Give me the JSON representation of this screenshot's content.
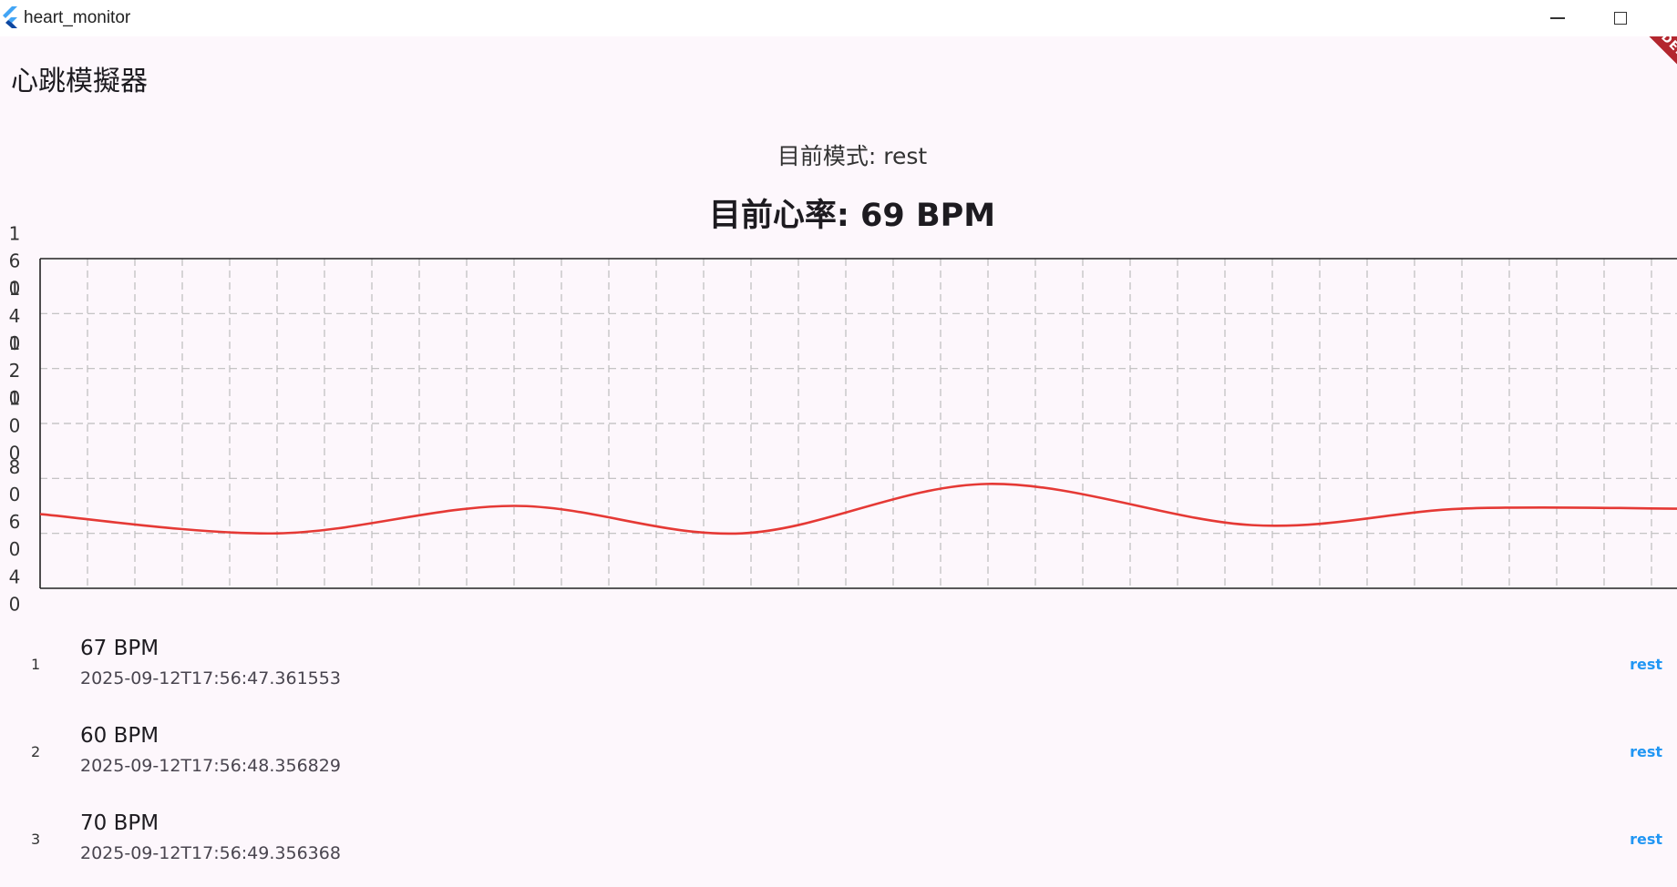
{
  "window": {
    "title": "heart_monitor",
    "minimize_icon": "minimize-icon",
    "maximize_icon": "maximize-icon",
    "debug_banner": "DEBUG"
  },
  "app": {
    "title": "心跳模擬器",
    "mode_label": "目前模式: rest",
    "bpm_label": "目前心率: 69 BPM"
  },
  "chart_data": {
    "type": "line",
    "ylim": [
      40,
      160
    ],
    "y_ticks": [
      40,
      60,
      80,
      100,
      120,
      140,
      160
    ],
    "x_gridlines": 35,
    "series": [
      {
        "color": "#e53935",
        "values": [
          67,
          60,
          70,
          60,
          78,
          63,
          69,
          69
        ]
      }
    ],
    "grid": true,
    "grid_style": "dashed"
  },
  "list": {
    "items": [
      {
        "index": "1",
        "bpm": "67 BPM",
        "time": "2025-09-12T17:56:47.361553",
        "mode": "rest"
      },
      {
        "index": "2",
        "bpm": "60 BPM",
        "time": "2025-09-12T17:56:48.356829",
        "mode": "rest"
      },
      {
        "index": "3",
        "bpm": "70 BPM",
        "time": "2025-09-12T17:56:49.356368",
        "mode": "rest"
      }
    ]
  }
}
